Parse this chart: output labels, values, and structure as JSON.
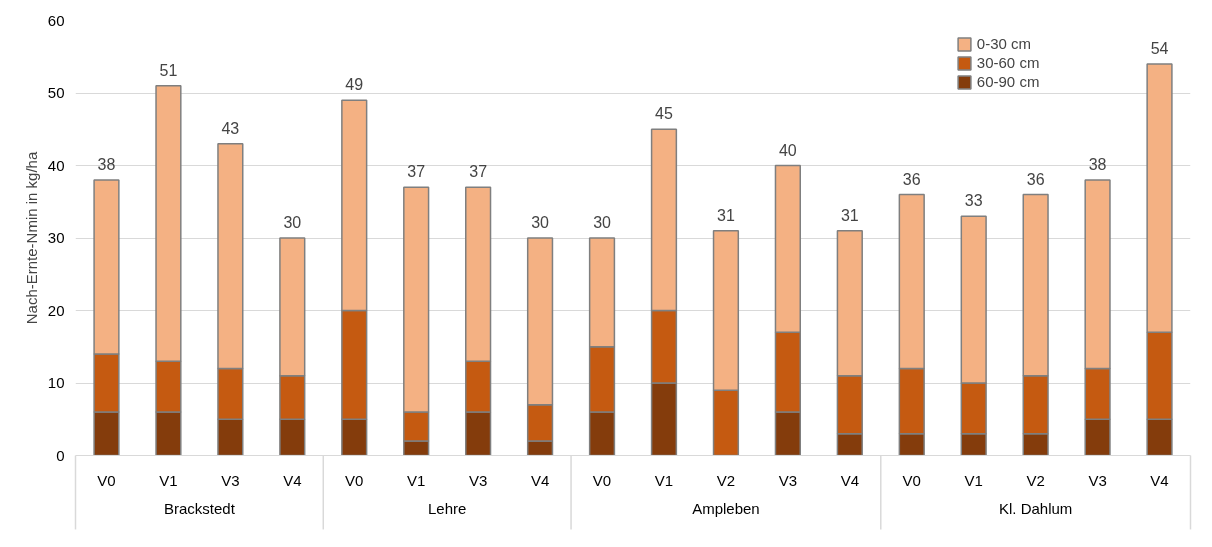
{
  "chart_data": {
    "type": "bar",
    "stacked": true,
    "ylabel": "Nach-Ernte-Nmin in kg/ha",
    "categories": [
      [
        "Brackstedt",
        "V0"
      ],
      [
        null,
        "V1"
      ],
      [
        null,
        "V3"
      ],
      [
        null,
        "V4"
      ],
      [
        "Lehre",
        "V0"
      ],
      [
        null,
        "V1"
      ],
      [
        null,
        "V3"
      ],
      [
        null,
        "V4"
      ],
      [
        "Ampleben",
        "V0"
      ],
      [
        null,
        "V1"
      ],
      [
        null,
        "V2"
      ],
      [
        null,
        "V3"
      ],
      [
        null,
        "V4"
      ],
      [
        "Kl. Dahlum",
        "V0"
      ],
      [
        null,
        "V1"
      ],
      [
        null,
        "V2"
      ],
      [
        null,
        "V3"
      ],
      [
        null,
        "V4"
      ]
    ],
    "series": [
      {
        "name": "60-90 cm",
        "color": "#843c0c",
        "values": [
          6,
          6,
          5,
          5,
          5,
          2,
          6,
          2,
          6,
          10,
          0,
          6,
          3,
          3,
          3,
          3,
          5,
          5
        ]
      },
      {
        "name": "30-60 cm",
        "color": "#c55a11",
        "values": [
          8,
          7,
          7,
          6,
          15,
          4,
          7,
          5,
          9,
          10,
          9,
          11,
          8,
          9,
          7,
          8,
          7,
          12
        ]
      },
      {
        "name": "0-30 cm",
        "color": "#f4b183",
        "values": [
          24,
          38,
          31,
          19,
          29,
          31,
          24,
          23,
          15,
          25,
          22,
          23,
          20,
          24,
          23,
          25,
          26,
          37
        ]
      }
    ],
    "totals": [
      "38",
      "51",
      "43",
      "30",
      "49",
      "37",
      "37",
      "30",
      "30",
      "45",
      "31",
      "40",
      "31",
      "36",
      "33",
      "36",
      "38",
      "54"
    ],
    "ylim": [
      0,
      60
    ],
    "yticks": [
      0,
      10,
      20,
      30,
      40,
      50,
      60
    ],
    "grid": "y",
    "legend": "top right"
  }
}
